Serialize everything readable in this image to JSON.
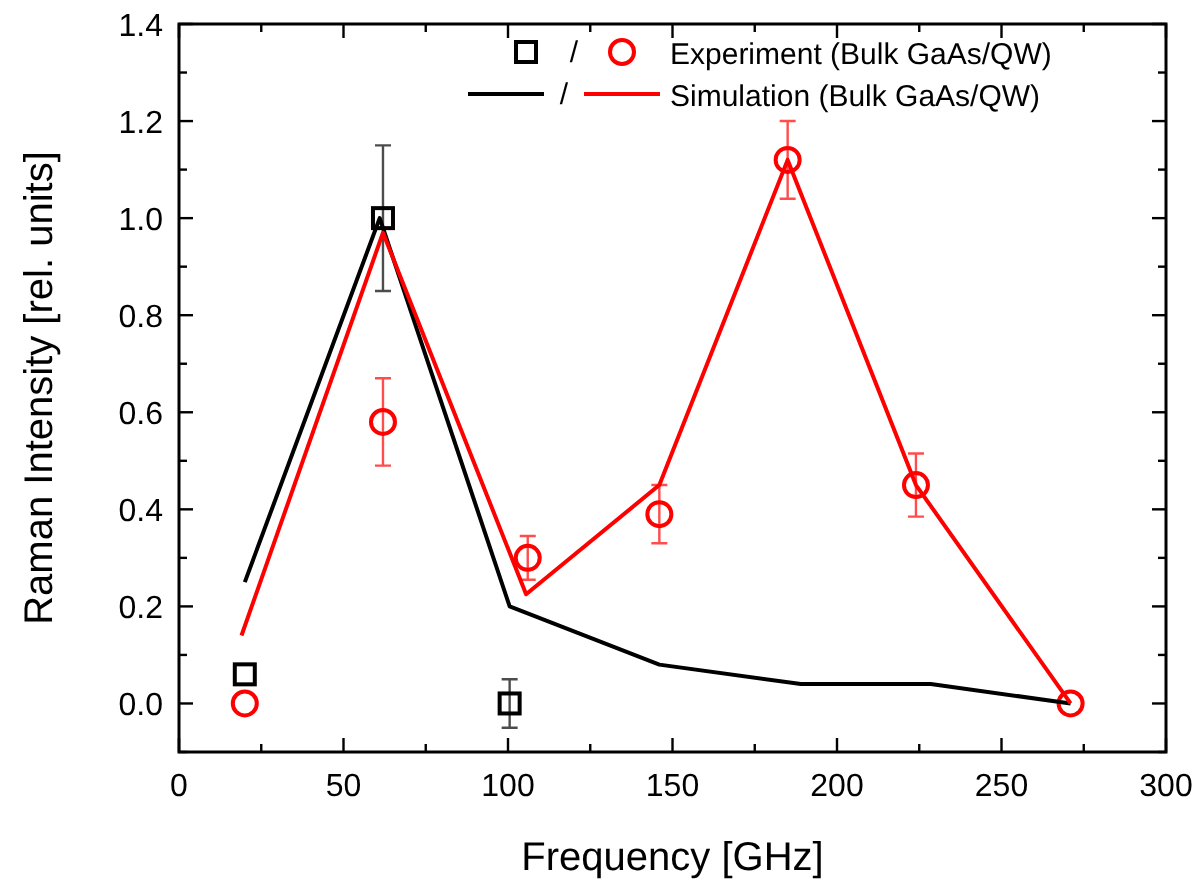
{
  "chart_data": {
    "type": "scatter",
    "xlabel": "Frequency [GHz]",
    "ylabel": "Raman Intensity [rel. units]",
    "xlim": [
      0,
      300
    ],
    "ylim": [
      -0.1,
      1.4
    ],
    "xticks": [
      0,
      {
        "value": 25,
        "label": null
      },
      50,
      {
        "value": 75,
        "label": null
      },
      100,
      {
        "value": 125,
        "label": null
      },
      150,
      {
        "value": 175,
        "label": null
      },
      200,
      {
        "value": 225,
        "label": null
      },
      250,
      {
        "value": 275,
        "label": null
      },
      300
    ],
    "yticks": [
      {
        "value": -0.1,
        "label": null
      },
      {
        "value": 0,
        "label": "0.0"
      },
      {
        "value": 0.1,
        "label": null
      },
      {
        "value": 0.2,
        "label": "0.2"
      },
      {
        "value": 0.3,
        "label": null
      },
      {
        "value": 0.4,
        "label": "0.4"
      },
      {
        "value": 0.5,
        "label": null
      },
      {
        "value": 0.6,
        "label": "0.6"
      },
      {
        "value": 0.7,
        "label": null
      },
      {
        "value": 0.8,
        "label": "0.8"
      },
      {
        "value": 0.9,
        "label": null
      },
      {
        "value": 1.0,
        "label": "1.0"
      },
      {
        "value": 1.1,
        "label": null
      },
      {
        "value": 1.2,
        "label": "1.2"
      },
      {
        "value": 1.3,
        "label": null
      },
      {
        "value": 1.4,
        "label": "1.4"
      }
    ],
    "grid": false,
    "legend": "top right",
    "annotations": [
      "/",
      "/"
    ],
    "series": [
      {
        "marker": "square",
        "color": "#000000",
        "x": [
          20,
          62,
          100.5
        ],
        "values": [
          0.06,
          1.0,
          0.0
        ],
        "errors": [
          null,
          0.15,
          0.05
        ]
      },
      {
        "name": "Experiment (Bulk GaAs/QW)",
        "marker": "circle",
        "color": "#ff0000",
        "x": [
          20,
          62,
          106,
          146,
          185,
          224,
          271
        ],
        "values": [
          0.0,
          0.58,
          0.3,
          0.39,
          1.12,
          0.45,
          0.0
        ],
        "errors": [
          null,
          0.09,
          0.045,
          0.06,
          0.08,
          0.065,
          null
        ]
      },
      {
        "type": "line",
        "marker": "none",
        "line_style": "solid",
        "color": "#000000",
        "x": [
          20,
          61,
          100.5,
          146,
          189,
          228.5,
          271
        ],
        "values": [
          0.25,
          1.0,
          0.2,
          0.08,
          0.04,
          0.04,
          0.0
        ]
      },
      {
        "name": "Simulation (Bulk GaAs/QW)",
        "type": "line",
        "marker": "none",
        "line_style": "solid",
        "color": "#ff0000",
        "x": [
          19,
          62,
          105.5,
          146,
          185,
          224,
          271
        ],
        "values": [
          0.14,
          0.97,
          0.225,
          0.45,
          1.12,
          0.45,
          0.0
        ]
      }
    ]
  }
}
